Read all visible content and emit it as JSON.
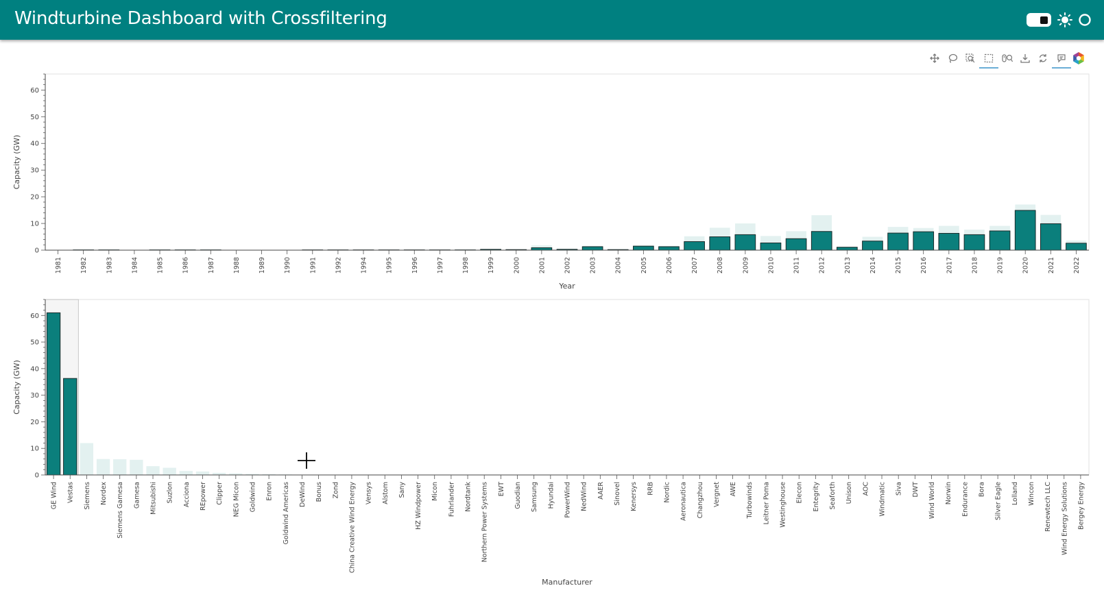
{
  "header": {
    "title": "Windturbine Dashboard with Crossfiltering"
  },
  "toolbar": {
    "tools": [
      "pan-icon",
      "lasso-select-icon",
      "box-zoom-icon",
      "box-select-icon",
      "wheel-zoom-icon",
      "save-icon",
      "reset-icon",
      "hover-icon",
      "bokeh-logo-icon"
    ],
    "active": [
      "box-select-icon",
      "hover-icon"
    ]
  },
  "colors": {
    "accent": "#008080",
    "selected_bar": "#0b7f7c",
    "unselected_bar": "#e3f1f0",
    "header_text": "#ffffff"
  },
  "chart_data": [
    {
      "type": "bar",
      "xlabel": "Year",
      "ylabel": "Capacity (GW)",
      "ylim": [
        0,
        66
      ],
      "yticks": [
        0,
        10,
        20,
        30,
        40,
        50,
        60
      ],
      "categories": [
        "1981",
        "1982",
        "1983",
        "1984",
        "1985",
        "1986",
        "1987",
        "1988",
        "1989",
        "1990",
        "1991",
        "1992",
        "1994",
        "1995",
        "1996",
        "1997",
        "1998",
        "1999",
        "2000",
        "2001",
        "2002",
        "2003",
        "2004",
        "2005",
        "2006",
        "2007",
        "2008",
        "2009",
        "2010",
        "2011",
        "2012",
        "2013",
        "2014",
        "2015",
        "2016",
        "2017",
        "2018",
        "2019",
        "2020",
        "2021",
        "2022"
      ],
      "series": [
        {
          "values": [
            0,
            0.2,
            0.2,
            0,
            0.2,
            0.2,
            0.2,
            0,
            0,
            0,
            0.1,
            0.1,
            0.1,
            0.1,
            0.1,
            0.1,
            0.2,
            0.4,
            0.3,
            1.8,
            0.6,
            1.6,
            0.4,
            1.8,
            1.6,
            5.2,
            8.4,
            10.0,
            5.3,
            7.1,
            13.1,
            1.2,
            5.0,
            8.7,
            8.3,
            9.1,
            7.7,
            9.1,
            17.1,
            13.2,
            3.6
          ]
        },
        {
          "values": [
            0,
            0.1,
            0.1,
            0,
            0.1,
            0.1,
            0.1,
            0,
            0,
            0,
            0.1,
            0.1,
            0.1,
            0.1,
            0.1,
            0.1,
            0.1,
            0.3,
            0.2,
            0.9,
            0.3,
            1.3,
            0.2,
            1.5,
            1.3,
            3.2,
            5.0,
            5.8,
            2.7,
            4.3,
            7.0,
            1.1,
            3.4,
            6.4,
            6.9,
            6.3,
            5.8,
            7.2,
            14.9,
            9.9,
            2.6
          ]
        }
      ]
    },
    {
      "type": "bar",
      "xlabel": "Manufacturer",
      "ylabel": "Capacity (GW)",
      "ylim": [
        0,
        66
      ],
      "yticks": [
        0,
        10,
        20,
        30,
        40,
        50,
        60
      ],
      "categories": [
        "GE Wind",
        "Vestas",
        "Siemens",
        "Nordex",
        "Siemens Gamesa",
        "Gamesa",
        "Mitsubishi",
        "Suzlon",
        "Acciona",
        "REpower",
        "Clipper",
        "NEG Micon",
        "Goldwind",
        "Enron",
        "Goldwind Americas",
        "DeWind",
        "Bonus",
        "Zond",
        "China Creative Wind Energy",
        "Vensys",
        "Alstom",
        "Sany",
        "HZ Windpower",
        "Micon",
        "Fuhrlander",
        "Nordtank",
        "Northern Power Systems",
        "EWT",
        "Guodian",
        "Samsung",
        "Hyundai",
        "PowerWind",
        "NedWind",
        "AAER",
        "Sinovel",
        "Kenersys",
        "RRB",
        "Nordic",
        "Aeronautica",
        "Changzhou",
        "Vergnet",
        "AWE",
        "Turbowinds",
        "Leitner Poma",
        "Westinghouse",
        "Elecon",
        "Entegrity",
        "Seaforth",
        "Unison",
        "AOC",
        "Windmatic",
        "Siva",
        "DWT",
        "Wind World",
        "Norwin",
        "Endurance",
        "Bora",
        "Silver Eagle",
        "Lolland",
        "Wincon",
        "Renewtech LLC",
        "Wind Energy Solutions",
        "Bergey Energy"
      ],
      "series": [
        {
          "values": [
            61,
            36.3,
            12,
            6,
            5.9,
            5.7,
            3.3,
            2.7,
            1.5,
            1.3,
            0.8,
            0.6,
            0.4,
            0.3,
            0.2,
            0.1,
            0.1,
            0.1,
            0.1,
            0.1,
            0.1,
            0.05,
            0.05,
            0.05,
            0.05,
            0.05,
            0.05,
            0.05,
            0.05,
            0.03,
            0.03,
            0.03,
            0.03,
            0.02,
            0.02,
            0.02,
            0.02,
            0.02,
            0.02,
            0.02,
            0.01,
            0.01,
            0.01,
            0.01,
            0.01,
            0.01,
            0.01,
            0.01,
            0.01,
            0.01,
            0.01,
            0.01,
            0.01,
            0.01,
            0.01,
            0.01,
            0.01,
            0.01,
            0.01,
            0.01,
            0.01,
            0.01,
            0.01
          ]
        }
      ],
      "selected": [
        "GE Wind",
        "Vestas"
      ]
    }
  ]
}
